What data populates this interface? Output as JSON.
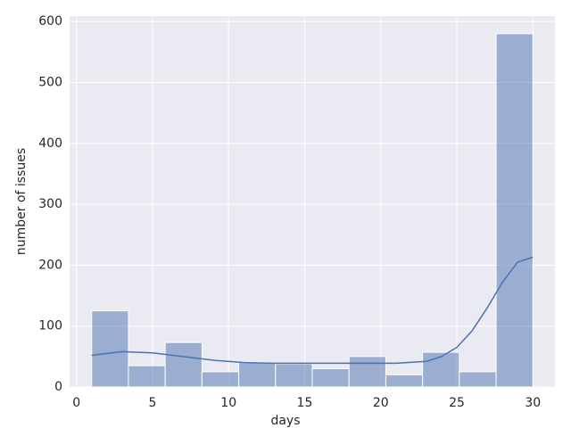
{
  "chart_data": {
    "type": "histogram",
    "xlabel": "days",
    "ylabel": "number of issues",
    "bins": [
      1,
      3.4167,
      5.8333,
      8.25,
      10.6667,
      13.0833,
      15.5,
      17.9167,
      20.3333,
      22.75,
      25.1667,
      27.5833,
      30
    ],
    "counts": [
      125,
      35,
      73,
      25,
      40,
      38,
      30,
      50,
      20,
      57,
      25,
      580
    ],
    "color": "#4c72b0",
    "kde": {
      "x": [
        1,
        3,
        5,
        7,
        9,
        11,
        13,
        15,
        17,
        19,
        21,
        23,
        24,
        25,
        26,
        27,
        28,
        29,
        30
      ],
      "values": [
        52,
        58,
        56,
        50,
        44,
        40,
        39,
        39,
        39,
        39,
        39,
        42,
        50,
        65,
        92,
        130,
        172,
        205,
        213
      ],
      "color": "#4c72b0"
    },
    "xlim": [
      -0.45,
      31.45
    ],
    "ylim": [
      0,
      609
    ],
    "xticks": [
      0,
      5,
      10,
      15,
      20,
      25,
      30
    ],
    "yticks": [
      0,
      100,
      200,
      300,
      400,
      500,
      600
    ],
    "grid": true
  }
}
